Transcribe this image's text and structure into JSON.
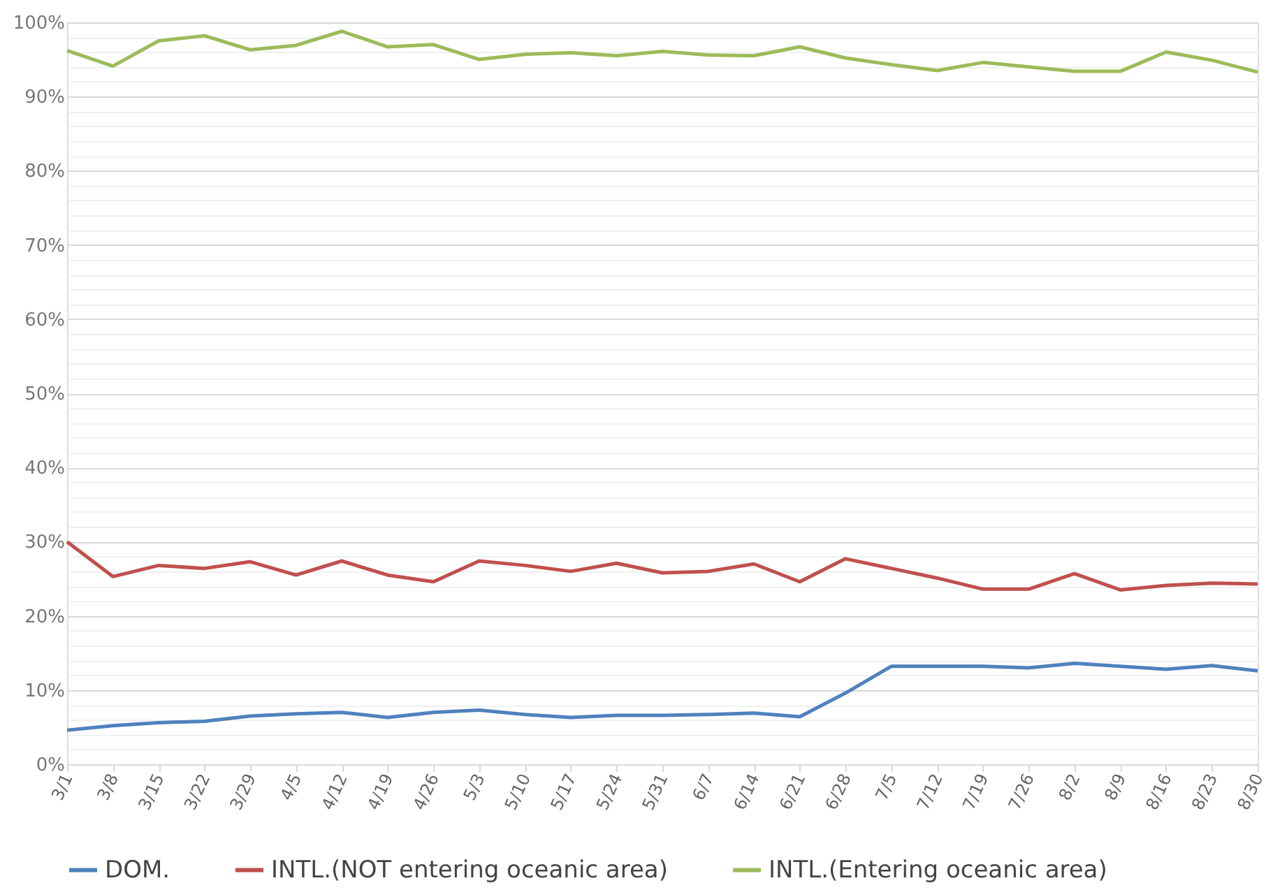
{
  "chart_data": {
    "type": "line",
    "categories": [
      "3/1",
      "3/8",
      "3/15",
      "3/22",
      "3/29",
      "4/5",
      "4/12",
      "4/19",
      "4/26",
      "5/3",
      "5/10",
      "5/17",
      "5/24",
      "5/31",
      "6/7",
      "6/14",
      "6/21",
      "6/28",
      "7/5",
      "7/12",
      "7/19",
      "7/26",
      "8/2",
      "8/9",
      "8/16",
      "8/23",
      "8/30"
    ],
    "series": [
      {
        "name": "DOM.",
        "color": "#4f81bd",
        "values": [
          4.6,
          5.2,
          5.6,
          5.8,
          6.5,
          6.8,
          7.0,
          6.3,
          7.0,
          7.3,
          6.7,
          6.3,
          6.6,
          6.6,
          6.7,
          6.9,
          6.4,
          9.6,
          13.2,
          13.2,
          13.2,
          13.0,
          13.6,
          13.2,
          12.8,
          13.3,
          12.6
        ]
      },
      {
        "name": "INTL.(NOT entering oceanic area)",
        "color": "#c0504d",
        "values": [
          30.0,
          25.3,
          26.8,
          26.4,
          27.3,
          25.5,
          27.4,
          25.5,
          24.6,
          27.4,
          26.8,
          26.0,
          27.1,
          25.8,
          26.0,
          27.0,
          24.6,
          27.7,
          26.4,
          25.1,
          23.6,
          23.6,
          25.7,
          23.5,
          24.1,
          24.4,
          24.3
        ]
      },
      {
        "name": "INTL.(Entering oceanic area)",
        "color": "#9bbb59",
        "values": [
          96.2,
          94.1,
          97.5,
          98.2,
          96.3,
          96.9,
          98.8,
          96.7,
          97.0,
          95.0,
          95.7,
          95.9,
          95.5,
          96.1,
          95.6,
          95.5,
          96.7,
          95.2,
          94.3,
          93.5,
          94.6,
          94.0,
          93.4,
          93.4,
          96.0,
          94.9,
          93.3
        ]
      }
    ],
    "ylim": [
      0,
      100
    ],
    "yticks": [
      {
        "value": 0,
        "label": "0%"
      },
      {
        "value": 2,
        "label": null
      },
      {
        "value": 4,
        "label": null
      },
      {
        "value": 6,
        "label": null
      },
      {
        "value": 8,
        "label": null
      },
      {
        "value": 10,
        "label": "10%"
      },
      {
        "value": 12,
        "label": null
      },
      {
        "value": 14,
        "label": null
      },
      {
        "value": 16,
        "label": null
      },
      {
        "value": 18,
        "label": null
      },
      {
        "value": 20,
        "label": "20%"
      },
      {
        "value": 22,
        "label": null
      },
      {
        "value": 24,
        "label": null
      },
      {
        "value": 26,
        "label": null
      },
      {
        "value": 28,
        "label": null
      },
      {
        "value": 30,
        "label": "30%"
      },
      {
        "value": 32,
        "label": null
      },
      {
        "value": 34,
        "label": null
      },
      {
        "value": 36,
        "label": null
      },
      {
        "value": 38,
        "label": null
      },
      {
        "value": 40,
        "label": "40%"
      },
      {
        "value": 42,
        "label": null
      },
      {
        "value": 44,
        "label": null
      },
      {
        "value": 46,
        "label": null
      },
      {
        "value": 48,
        "label": null
      },
      {
        "value": 50,
        "label": "50%"
      },
      {
        "value": 52,
        "label": null
      },
      {
        "value": 54,
        "label": null
      },
      {
        "value": 56,
        "label": null
      },
      {
        "value": 58,
        "label": null
      },
      {
        "value": 60,
        "label": "60%"
      },
      {
        "value": 62,
        "label": null
      },
      {
        "value": 64,
        "label": null
      },
      {
        "value": 66,
        "label": null
      },
      {
        "value": 68,
        "label": null
      },
      {
        "value": 70,
        "label": "70%"
      },
      {
        "value": 72,
        "label": null
      },
      {
        "value": 74,
        "label": null
      },
      {
        "value": 76,
        "label": null
      },
      {
        "value": 78,
        "label": null
      },
      {
        "value": 80,
        "label": "80%"
      },
      {
        "value": 82,
        "label": null
      },
      {
        "value": 84,
        "label": null
      },
      {
        "value": 86,
        "label": null
      },
      {
        "value": 88,
        "label": null
      },
      {
        "value": 90,
        "label": "90%"
      },
      {
        "value": 92,
        "label": null
      },
      {
        "value": 94,
        "label": null
      },
      {
        "value": 96,
        "label": null
      },
      {
        "value": 98,
        "label": null
      },
      {
        "value": 100,
        "label": "100%"
      }
    ],
    "grid": "y",
    "legend": "bottom",
    "marker": "none",
    "line_style": "solid"
  }
}
